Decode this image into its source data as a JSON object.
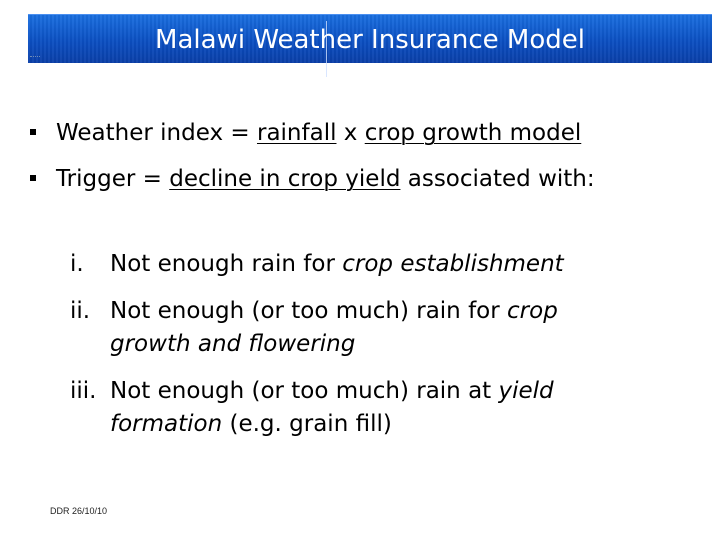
{
  "header": {
    "title": "Malawi Weather Insurance Model"
  },
  "bullets": {
    "b1": {
      "pre": "Weather index = ",
      "u1": "rainfall",
      "mid": " x ",
      "u2": "crop growth model"
    },
    "b2": {
      "pre": "Trigger = ",
      "u1": "decline in crop yield",
      "post": " associated with:"
    }
  },
  "subitems": {
    "i": {
      "num": "i.",
      "text": "Not enough rain for ",
      "italic": "crop establishment"
    },
    "ii": {
      "num": "ii.",
      "text": "Not enough (or too much) rain for ",
      "italic": "crop",
      "line2_italic": "growth and flowering"
    },
    "iii": {
      "num": "iii.",
      "text": "Not enough (or too much) rain at ",
      "italic": "yield",
      "line2_italic": "formation",
      "line2_rest": " (e.g. grain fill)"
    }
  },
  "footer": {
    "text": "DDR 26/10/10"
  },
  "colors": {
    "title_bar": "#0b4fc2",
    "title_text": "#ffffff"
  }
}
